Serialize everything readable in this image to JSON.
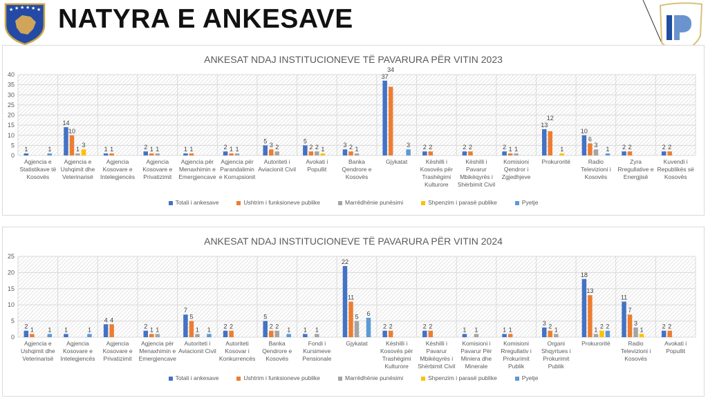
{
  "header": {
    "title": "NATYRA E ANKESAVE"
  },
  "colors": {
    "series": [
      "#4472c4",
      "#ed7d31",
      "#a5a5a5",
      "#ffc000",
      "#5b9bd5"
    ]
  },
  "chart_data": [
    {
      "type": "bar",
      "title": "ANKESAT NDAJ INSTITUCIONEVE TË PAVARURA PËR VITIN 2023",
      "ylim": [
        0,
        40
      ],
      "yticks": [
        0,
        5,
        10,
        15,
        20,
        25,
        30,
        35,
        40
      ],
      "grid": true,
      "legend": "bottom",
      "categories": [
        "Agjencia e Statistikave të Kosovës",
        "Agjencia e Ushqimit dhe Veterinarisë",
        "Agjencia Kosovare e Intelegjencës",
        "Agjencia Kosovare e Privatizimit",
        "Agjencia për Menaxhimin e Emergjencave",
        "Agjencia për Parandalimin e Korrupsionit",
        "Autoriteti i Aviacionit Civil",
        "Avokati i Popullit",
        "Banka Qendrore e Kosovës",
        "Gjykatat",
        "Këshilli i Kosovës për Trashëgimi Kulturore",
        "Këshilli i Pavarur Mbikëqyrës i Shërbimit Civil",
        "Komisioni Qendror i Zgjedhjeve",
        "Prokuroritë",
        "Radio Televizioni i Kosovës",
        "Zyra Rregullative e Energjisë",
        "Kuvendi i Republikës së Kosovës"
      ],
      "series": [
        {
          "name": "Totali i ankesave",
          "values": [
            1,
            14,
            1,
            2,
            1,
            2,
            5,
            5,
            3,
            37,
            2,
            2,
            2,
            13,
            10,
            2,
            2
          ]
        },
        {
          "name": "Ushtrim i funksioneve publike",
          "values": [
            0,
            10,
            1,
            1,
            1,
            1,
            3,
            2,
            2,
            34,
            2,
            2,
            1,
            12,
            6,
            2,
            2
          ]
        },
        {
          "name": "Marrëdhënie punësimi",
          "values": [
            0,
            1,
            0,
            1,
            0,
            1,
            2,
            2,
            1,
            0,
            0,
            0,
            1,
            0,
            3,
            0,
            0
          ]
        },
        {
          "name": "Shpenzim i parasë publike",
          "values": [
            0,
            3,
            0,
            0,
            0,
            0,
            0,
            1,
            0,
            0,
            0,
            0,
            0,
            1,
            0,
            0,
            0
          ]
        },
        {
          "name": "Pyetje",
          "values": [
            1,
            0,
            0,
            0,
            0,
            0,
            0,
            0,
            0,
            3,
            0,
            0,
            0,
            0,
            1,
            0,
            0
          ]
        }
      ]
    },
    {
      "type": "bar",
      "title": "ANKESAT NDAJ INSTITUCIONEVE TË PAVARURA PËR VITIN 2024",
      "ylim": [
        0,
        25
      ],
      "yticks": [
        0,
        5,
        10,
        15,
        20,
        25
      ],
      "grid": true,
      "legend": "bottom",
      "categories": [
        "Agjencia e Ushqimit dhe Veterinarisë",
        "Agjencia Kosovare e Intelegjencës",
        "Agjencia Kosovare e Privatizimit",
        "Agjencia për Menaxhimin e Emergjencave",
        "Autoriteti i Aviacionit Civil",
        "Autoriteti Kosovar i Konkurrencës",
        "Banka Qendrore e Kosovës",
        "Fondi i Kursimeve Pensionale",
        "Gjykatat",
        "Këshilli i Kosovës për Trashëgimi Kulturore",
        "Këshilli i Pavarur Mbikëqyrës i Shërbimit Civil",
        "Komisioni i Pavarur Për Miniera dhe Minerale",
        "Komisioni Rregullativ i Prokurimit Publik",
        "Organi Shqyrtues i Prokurimit Publik",
        "Prokuroritë",
        "Radio Televizioni i Kosovës",
        "Avokati i Popullit"
      ],
      "series": [
        {
          "name": "Totali i ankesave",
          "values": [
            2,
            1,
            4,
            2,
            7,
            2,
            5,
            1,
            22,
            2,
            2,
            1,
            1,
            3,
            18,
            11,
            2
          ]
        },
        {
          "name": "Ushtrim i funksioneve publike",
          "values": [
            1,
            0,
            4,
            1,
            5,
            2,
            2,
            0,
            11,
            2,
            2,
            0,
            1,
            2,
            13,
            7,
            2
          ]
        },
        {
          "name": "Marrëdhënie punësimi",
          "values": [
            0,
            0,
            0,
            1,
            1,
            0,
            2,
            1,
            5,
            0,
            0,
            1,
            0,
            1,
            1,
            3,
            0
          ]
        },
        {
          "name": "Shpenzim i parasë publike",
          "values": [
            0,
            0,
            0,
            0,
            0,
            0,
            0,
            0,
            0,
            0,
            0,
            0,
            0,
            0,
            2,
            1,
            0
          ]
        },
        {
          "name": "Pyetje",
          "values": [
            1,
            1,
            0,
            0,
            1,
            0,
            1,
            0,
            6,
            0,
            0,
            0,
            0,
            0,
            2,
            0,
            0
          ]
        }
      ]
    }
  ]
}
